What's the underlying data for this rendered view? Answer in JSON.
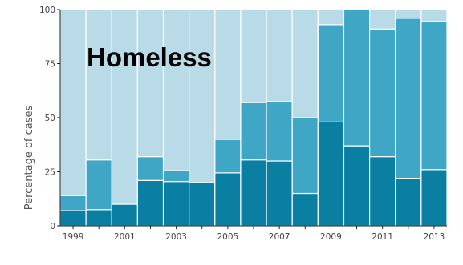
{
  "chart_data": {
    "type": "bar",
    "stacked": true,
    "title": "Homeless",
    "xlabel": "",
    "ylabel": "Percentage of cases",
    "categories": [
      "1999",
      "2000",
      "2001",
      "2002",
      "2003",
      "2004",
      "2005",
      "2006",
      "2007",
      "2008",
      "2009",
      "2010",
      "2011",
      "2012",
      "2013"
    ],
    "x_tick_labels": [
      "1999",
      "2001",
      "2003",
      "2005",
      "2007",
      "2009",
      "2011",
      "2013"
    ],
    "y_ticks": [
      "0",
      "25",
      "50",
      "75",
      "100"
    ],
    "ylim": [
      0,
      100
    ],
    "grid": false,
    "legend": "none",
    "series": [
      {
        "values": [
          7,
          7.5,
          10,
          21,
          20.5,
          20,
          24.5,
          30.5,
          30,
          15,
          48,
          37,
          32,
          22,
          26
        ]
      },
      {
        "values": [
          7,
          23,
          0,
          11,
          5,
          0,
          15.5,
          26.5,
          27.5,
          35,
          45,
          63,
          59,
          74,
          68.5
        ]
      },
      {
        "values": [
          86,
          69.5,
          90,
          68,
          74.5,
          80,
          60,
          43,
          42.5,
          50,
          7,
          0,
          9,
          4,
          5.5
        ]
      }
    ],
    "colors": [
      "#0b7fa1",
      "#3fa6c6",
      "#b9dbe8"
    ],
    "axis_color": "#222222"
  }
}
